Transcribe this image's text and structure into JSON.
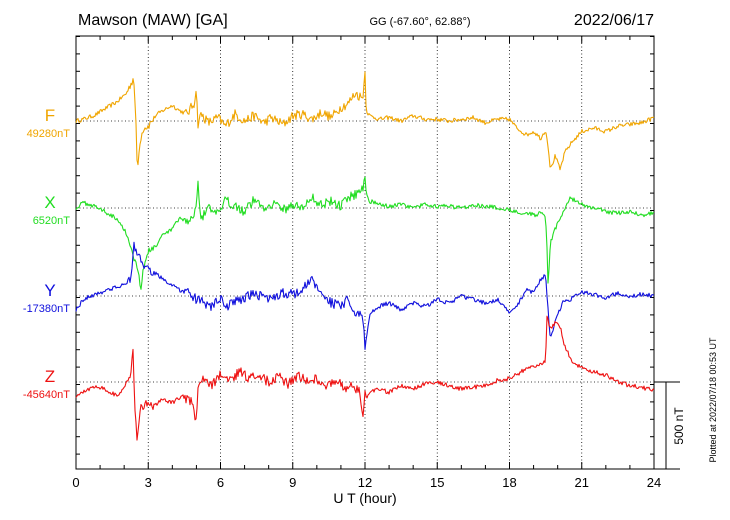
{
  "chart_data": {
    "type": "line",
    "title_left": "Mawson (MAW)  [GA]",
    "title_center": "GG (-67.60°,  62.88°)",
    "title_right": "2022/06/17",
    "xlabel": "U T (hour)",
    "xlim": [
      0,
      24
    ],
    "xticks": [
      "0",
      "3",
      "6",
      "9",
      "12",
      "15",
      "18",
      "21",
      "24"
    ],
    "grid": "vertical dotted at 3-hour ticks; dotted baseline per component",
    "scale_label": "500 nT",
    "scale_value_nT": 500,
    "footer": "Plotted at 2022/07/18 00:53 UT",
    "series": [
      {
        "name": "F",
        "baseline_label": "49280nT",
        "baseline_nT": 49280,
        "color": "#f0a500",
        "x": [
          0,
          0.3,
          0.8,
          1.2,
          1.7,
          2.1,
          2.3,
          2.4,
          2.5,
          2.55,
          2.65,
          2.8,
          3.0,
          3.3,
          3.6,
          4.0,
          4.3,
          4.6,
          4.9,
          5.0,
          5.05,
          5.2,
          5.5,
          5.9,
          6.2,
          6.6,
          7.0,
          7.4,
          7.8,
          8.1,
          8.6,
          9.0,
          9.4,
          9.8,
          10.2,
          10.6,
          11.0,
          11.3,
          11.6,
          11.9,
          12.0,
          12.05,
          12.2,
          12.6,
          13.0,
          13.5,
          14.0,
          14.5,
          15.0,
          15.5,
          16.0,
          16.5,
          17.0,
          17.5,
          18.0,
          18.3,
          18.7,
          19.0,
          19.3,
          19.5,
          19.6,
          19.7,
          19.9,
          20.1,
          20.3,
          20.6,
          21.0,
          21.5,
          22.0,
          22.5,
          23.0,
          23.5,
          24.0
        ],
        "y": [
          0,
          10,
          35,
          70,
          110,
          160,
          220,
          250,
          -60,
          -300,
          -120,
          -40,
          -30,
          30,
          60,
          90,
          60,
          40,
          100,
          200,
          -20,
          40,
          -10,
          20,
          -30,
          40,
          0,
          30,
          -10,
          20,
          -20,
          30,
          40,
          10,
          50,
          20,
          80,
          100,
          160,
          130,
          280,
          60,
          30,
          10,
          20,
          0,
          30,
          10,
          10,
          0,
          10,
          20,
          -10,
          10,
          10,
          -40,
          -80,
          -60,
          -100,
          -50,
          -140,
          -280,
          -200,
          -280,
          -180,
          -120,
          -60,
          -40,
          -60,
          -30,
          -20,
          -10,
          20
        ]
      },
      {
        "name": "X",
        "baseline_label": "6520nT",
        "baseline_nT": 6520,
        "color": "#22dd22",
        "x": [
          0,
          0.3,
          0.8,
          1.2,
          1.7,
          2.0,
          2.3,
          2.4,
          2.6,
          2.7,
          2.8,
          3.0,
          3.3,
          3.6,
          4.0,
          4.3,
          4.6,
          4.9,
          5.0,
          5.05,
          5.2,
          5.5,
          5.9,
          6.2,
          6.6,
          7.0,
          7.4,
          7.8,
          8.2,
          8.6,
          9.0,
          9.4,
          9.8,
          10.2,
          10.6,
          11.0,
          11.3,
          11.6,
          11.9,
          12.0,
          12.05,
          12.2,
          12.6,
          13.0,
          13.5,
          14.0,
          14.5,
          15.0,
          15.5,
          16.0,
          16.5,
          17.0,
          17.5,
          18.0,
          18.3,
          18.7,
          19.0,
          19.3,
          19.5,
          19.55,
          19.6,
          19.7,
          19.9,
          20.2,
          20.5,
          21.0,
          21.5,
          22.0,
          22.5,
          23.0,
          23.5,
          24.0
        ],
        "y": [
          0,
          30,
          10,
          -20,
          -60,
          -120,
          -220,
          -300,
          -350,
          -480,
          -340,
          -250,
          -220,
          -160,
          -120,
          -60,
          -80,
          -40,
          40,
          150,
          -60,
          0,
          -40,
          40,
          20,
          -20,
          50,
          0,
          30,
          -10,
          20,
          0,
          60,
          20,
          40,
          10,
          60,
          80,
          110,
          180,
          90,
          40,
          20,
          10,
          20,
          0,
          20,
          10,
          10,
          0,
          20,
          10,
          0,
          -10,
          -20,
          -30,
          -40,
          -30,
          -60,
          -200,
          -450,
          -200,
          -120,
          -30,
          60,
          20,
          0,
          -20,
          -30,
          -20,
          -40,
          -30
        ]
      },
      {
        "name": "Y",
        "baseline_label": "-17380nT",
        "baseline_nT": -17380,
        "color": "#1010dd",
        "x": [
          0,
          0.3,
          0.8,
          1.2,
          1.7,
          2.0,
          2.3,
          2.4,
          2.5,
          2.7,
          2.8,
          3.0,
          3.4,
          3.8,
          4.2,
          4.6,
          5.0,
          5.3,
          5.6,
          6.0,
          6.3,
          6.6,
          7.0,
          7.4,
          7.8,
          8.2,
          8.6,
          9.0,
          9.4,
          9.8,
          10.2,
          10.6,
          11.0,
          11.3,
          11.6,
          11.9,
          12.0,
          12.2,
          12.6,
          13.0,
          13.5,
          14.0,
          14.5,
          15.0,
          15.5,
          16.0,
          16.5,
          17.0,
          17.5,
          18.0,
          18.3,
          18.7,
          19.0,
          19.3,
          19.5,
          19.6,
          19.7,
          19.9,
          20.2,
          20.5,
          21.0,
          21.5,
          22.0,
          22.5,
          23.0,
          23.5,
          24.0
        ],
        "y": [
          -80,
          -20,
          10,
          30,
          50,
          70,
          100,
          300,
          260,
          200,
          180,
          150,
          120,
          80,
          40,
          20,
          -20,
          -40,
          -60,
          -20,
          -60,
          -30,
          -10,
          10,
          0,
          -20,
          20,
          10,
          40,
          90,
          20,
          -40,
          -60,
          -20,
          -120,
          -90,
          -300,
          -100,
          -60,
          -40,
          -80,
          -40,
          -60,
          -20,
          -40,
          0,
          -20,
          -40,
          -20,
          -100,
          -60,
          40,
          20,
          100,
          120,
          -80,
          -250,
          -150,
          -40,
          -20,
          20,
          10,
          -10,
          20,
          0,
          10,
          0
        ]
      },
      {
        "name": "Z",
        "baseline_label": "-45640nT",
        "baseline_nT": -45640,
        "color": "#ee1111",
        "x": [
          0,
          0.3,
          0.8,
          1.2,
          1.7,
          2.0,
          2.3,
          2.35,
          2.45,
          2.55,
          2.6,
          2.7,
          2.9,
          3.2,
          3.6,
          4.0,
          4.4,
          4.8,
          5.0,
          5.05,
          5.2,
          5.6,
          6.0,
          6.4,
          6.8,
          7.2,
          7.6,
          8.0,
          8.4,
          8.8,
          9.2,
          9.6,
          10.0,
          10.4,
          10.8,
          11.2,
          11.5,
          11.8,
          11.9,
          12.0,
          12.05,
          12.2,
          12.6,
          13.0,
          13.5,
          14.0,
          14.5,
          15.0,
          15.5,
          16.0,
          16.5,
          17.0,
          17.5,
          18.0,
          18.5,
          18.8,
          19.2,
          19.5,
          19.55,
          19.7,
          19.9,
          20.1,
          20.3,
          20.6,
          21.0,
          21.5,
          22.0,
          22.5,
          23.0,
          23.5,
          24.0
        ],
        "y": [
          -80,
          -60,
          -20,
          -40,
          -80,
          -40,
          60,
          250,
          -150,
          -350,
          -250,
          -150,
          -120,
          -140,
          -100,
          -120,
          -80,
          -120,
          -250,
          -60,
          20,
          -20,
          40,
          10,
          60,
          20,
          40,
          0,
          30,
          -10,
          40,
          0,
          20,
          -20,
          10,
          -40,
          -20,
          -60,
          -200,
          -40,
          -100,
          -60,
          -40,
          -60,
          -20,
          -40,
          -10,
          0,
          -20,
          -40,
          -30,
          -20,
          10,
          20,
          60,
          80,
          100,
          120,
          380,
          300,
          340,
          320,
          200,
          120,
          80,
          60,
          40,
          0,
          -20,
          -30,
          -50
        ]
      }
    ]
  }
}
